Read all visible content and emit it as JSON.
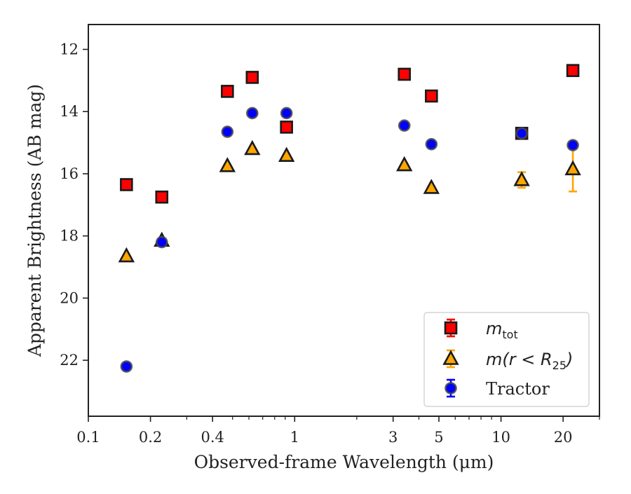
{
  "chart_data": {
    "type": "scatter",
    "title": "",
    "xlabel": "Observed-frame Wavelength (μm)",
    "ylabel": "Apparent Brightness (AB mag)",
    "xscale": "log",
    "xlim": [
      0.1,
      30
    ],
    "ylim": [
      23.8,
      11.2
    ],
    "y_inverted": true,
    "xticks": [
      0.1,
      0.2,
      0.4,
      1,
      3,
      5,
      10,
      20
    ],
    "xtick_labels": [
      "0.1",
      "0.2",
      "0.4",
      "1",
      "3",
      "5",
      "10",
      "20"
    ],
    "yticks": [
      12,
      14,
      16,
      18,
      20,
      22
    ],
    "ytick_labels": [
      "12",
      "14",
      "16",
      "18",
      "20",
      "22"
    ],
    "grid": false,
    "legend_position": "lower-right",
    "series": [
      {
        "name": "m_tot",
        "legend_main": "m",
        "legend_sub": "tot",
        "marker": "square",
        "fill": "#ff0000",
        "error_color": "#ff0000",
        "points": [
          {
            "x": 0.153,
            "y": 16.35,
            "err": 0.0
          },
          {
            "x": 0.227,
            "y": 16.75,
            "err": 0.0
          },
          {
            "x": 0.472,
            "y": 13.35,
            "err": 0.0
          },
          {
            "x": 0.623,
            "y": 12.9,
            "err": 0.0
          },
          {
            "x": 0.913,
            "y": 14.5,
            "err": 0.0
          },
          {
            "x": 3.4,
            "y": 12.8,
            "err": 0.0
          },
          {
            "x": 4.6,
            "y": 13.5,
            "err": 0.0
          },
          {
            "x": 12.6,
            "y": 14.7,
            "err": 0.0
          },
          {
            "x": 22.3,
            "y": 12.68,
            "err": 0.0
          }
        ]
      },
      {
        "name": "m(r < R_25)",
        "legend_main": "m(r < R",
        "legend_sub": "25",
        "legend_tail": ")",
        "marker": "triangle",
        "fill": "#ffa500",
        "error_color": "#ffa500",
        "points": [
          {
            "x": 0.153,
            "y": 18.65,
            "err": 0.0
          },
          {
            "x": 0.227,
            "y": 18.15,
            "err": 0.0
          },
          {
            "x": 0.472,
            "y": 15.75,
            "err": 0.0
          },
          {
            "x": 0.623,
            "y": 15.2,
            "err": 0.0
          },
          {
            "x": 0.913,
            "y": 15.42,
            "err": 0.0
          },
          {
            "x": 3.4,
            "y": 15.72,
            "err": 0.0
          },
          {
            "x": 4.6,
            "y": 16.45,
            "err": 0.0
          },
          {
            "x": 12.6,
            "y": 16.2,
            "err": 0.25
          },
          {
            "x": 22.3,
            "y": 15.85,
            "err": 0.72
          }
        ]
      },
      {
        "name": "Tractor",
        "marker": "circle",
        "fill": "#0000ff",
        "error_color": "#0000ff",
        "points": [
          {
            "x": 0.153,
            "y": 22.2,
            "err": 0.0
          },
          {
            "x": 0.227,
            "y": 18.2,
            "err": 0.0
          },
          {
            "x": 0.472,
            "y": 14.65,
            "err": 0.0
          },
          {
            "x": 0.623,
            "y": 14.05,
            "err": 0.0
          },
          {
            "x": 0.913,
            "y": 14.05,
            "err": 0.0
          },
          {
            "x": 3.4,
            "y": 14.45,
            "err": 0.0
          },
          {
            "x": 4.6,
            "y": 15.05,
            "err": 0.0
          },
          {
            "x": 12.6,
            "y": 14.7,
            "err": 0.0
          },
          {
            "x": 22.3,
            "y": 15.08,
            "err": 0.0
          }
        ]
      }
    ]
  }
}
